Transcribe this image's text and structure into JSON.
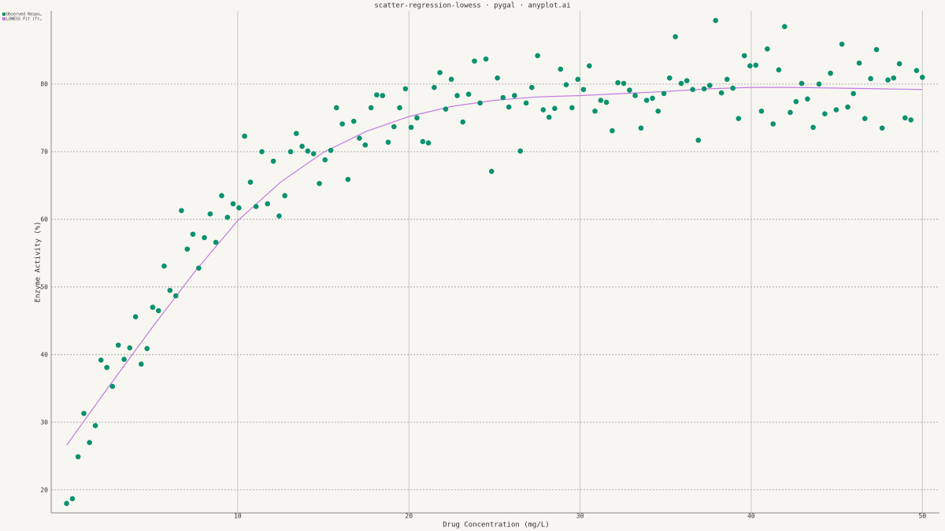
{
  "chart_data": {
    "type": "scatter",
    "title": "scatter-regression-lowess · pygal · anyplot.ai",
    "x_label": "Drug Concentration (mg/L)",
    "y_label": "Enzyme Activity (%)",
    "xlim": [
      -0.9,
      51
    ],
    "ylim": [
      16.6,
      90.8
    ],
    "xticks": [
      10,
      20,
      30,
      40,
      50
    ],
    "yticks": [
      20,
      30,
      40,
      50,
      60,
      70,
      80
    ],
    "grid": true,
    "legend": "top-left",
    "series": [
      {
        "name": "Observed Respo…",
        "type": "scatter",
        "color": "#0b9170",
        "x": [
          0,
          0.34,
          0.67,
          1.01,
          1.34,
          1.68,
          2.01,
          2.35,
          2.68,
          3.02,
          3.36,
          3.69,
          4.03,
          4.36,
          4.7,
          5.03,
          5.37,
          5.7,
          6.04,
          6.38,
          6.71,
          7.05,
          7.38,
          7.72,
          8.05,
          8.39,
          8.72,
          9.06,
          9.4,
          9.73,
          10.07,
          10.4,
          10.74,
          11.07,
          11.41,
          11.74,
          12.08,
          12.42,
          12.75,
          13.09,
          13.42,
          13.76,
          14.09,
          14.43,
          14.77,
          15.1,
          15.44,
          15.77,
          16.11,
          16.44,
          16.78,
          17.11,
          17.45,
          17.79,
          18.12,
          18.46,
          18.79,
          19.13,
          19.46,
          19.8,
          20.13,
          20.47,
          20.81,
          21.14,
          21.48,
          21.81,
          22.15,
          22.48,
          22.82,
          23.15,
          23.49,
          23.83,
          24.16,
          24.5,
          24.83,
          25.17,
          25.5,
          25.84,
          26.17,
          26.51,
          26.85,
          27.18,
          27.52,
          27.85,
          28.19,
          28.52,
          28.86,
          29.19,
          29.53,
          29.87,
          30.2,
          30.54,
          30.87,
          31.21,
          31.54,
          31.88,
          32.21,
          32.55,
          32.89,
          33.22,
          33.56,
          33.89,
          34.23,
          34.56,
          34.9,
          35.23,
          35.57,
          35.91,
          36.24,
          36.58,
          36.91,
          37.25,
          37.58,
          37.92,
          38.26,
          38.59,
          38.93,
          39.26,
          39.6,
          39.93,
          40.27,
          40.6,
          40.94,
          41.28,
          41.61,
          41.95,
          42.28,
          42.62,
          42.95,
          43.29,
          43.62,
          43.96,
          44.3,
          44.63,
          44.97,
          45.3,
          45.64,
          45.97,
          46.31,
          46.64,
          46.98,
          47.32,
          47.65,
          47.99,
          48.32,
          48.66,
          48.99,
          49.33,
          49.66,
          50
        ],
        "values": [
          18.0,
          18.7,
          24.9,
          31.3,
          27.0,
          29.5,
          39.2,
          38.1,
          35.3,
          41.4,
          39.3,
          41.0,
          45.6,
          38.6,
          40.9,
          47.0,
          46.5,
          53.1,
          49.5,
          48.7,
          61.3,
          55.6,
          57.8,
          52.8,
          57.3,
          60.8,
          56.6,
          63.5,
          60.3,
          62.3,
          61.7,
          72.3,
          65.5,
          61.9,
          70.0,
          62.3,
          68.6,
          60.5,
          63.5,
          70.0,
          72.7,
          70.8,
          70.1,
          69.7,
          65.3,
          68.8,
          70.2,
          76.5,
          74.1,
          65.9,
          74.5,
          72.0,
          71.0,
          76.5,
          78.4,
          78.3,
          71.4,
          73.7,
          76.5,
          79.3,
          73.6,
          75.0,
          71.5,
          71.3,
          79.5,
          81.7,
          76.3,
          80.7,
          78.3,
          74.4,
          78.5,
          83.4,
          77.2,
          83.7,
          67.1,
          80.9,
          78.0,
          76.6,
          78.3,
          70.1,
          77.2,
          79.5,
          84.2,
          76.2,
          75.1,
          76.4,
          82.2,
          79.9,
          76.5,
          80.7,
          79.2,
          82.7,
          76.0,
          77.6,
          77.3,
          73.1,
          80.2,
          80.1,
          79.1,
          78.3,
          73.5,
          77.6,
          77.9,
          76.0,
          78.6,
          80.9,
          87.0,
          80.1,
          80.5,
          79.2,
          71.7,
          79.3,
          79.8,
          89.4,
          78.7,
          80.7,
          79.4,
          74.9,
          84.2,
          82.7,
          82.8,
          76.0,
          85.2,
          74.1,
          82.1,
          88.5,
          75.8,
          77.4,
          80.1,
          77.8,
          73.6,
          80.0,
          75.6,
          81.6,
          76.2,
          85.9,
          76.6,
          78.6,
          83.1,
          74.9,
          80.8,
          85.1,
          73.5,
          80.6,
          80.9,
          83.0,
          75.0,
          74.7,
          82.0,
          81.0
        ]
      },
      {
        "name": "LOWESS Fit (fr…",
        "type": "line",
        "color": "#c27be3",
        "x": [
          0,
          2.5,
          5,
          7.5,
          10,
          12.5,
          15,
          17.5,
          20,
          22.5,
          25,
          27.5,
          30,
          32.5,
          35,
          37.5,
          40,
          42.5,
          45,
          47.5,
          50
        ],
        "values": [
          26.6,
          35.4,
          44.0,
          52.3,
          59.8,
          65.5,
          69.9,
          73.0,
          75.2,
          76.7,
          77.6,
          78.1,
          78.3,
          78.6,
          78.9,
          79.3,
          79.5,
          79.5,
          79.4,
          79.3,
          79.2
        ]
      }
    ]
  }
}
